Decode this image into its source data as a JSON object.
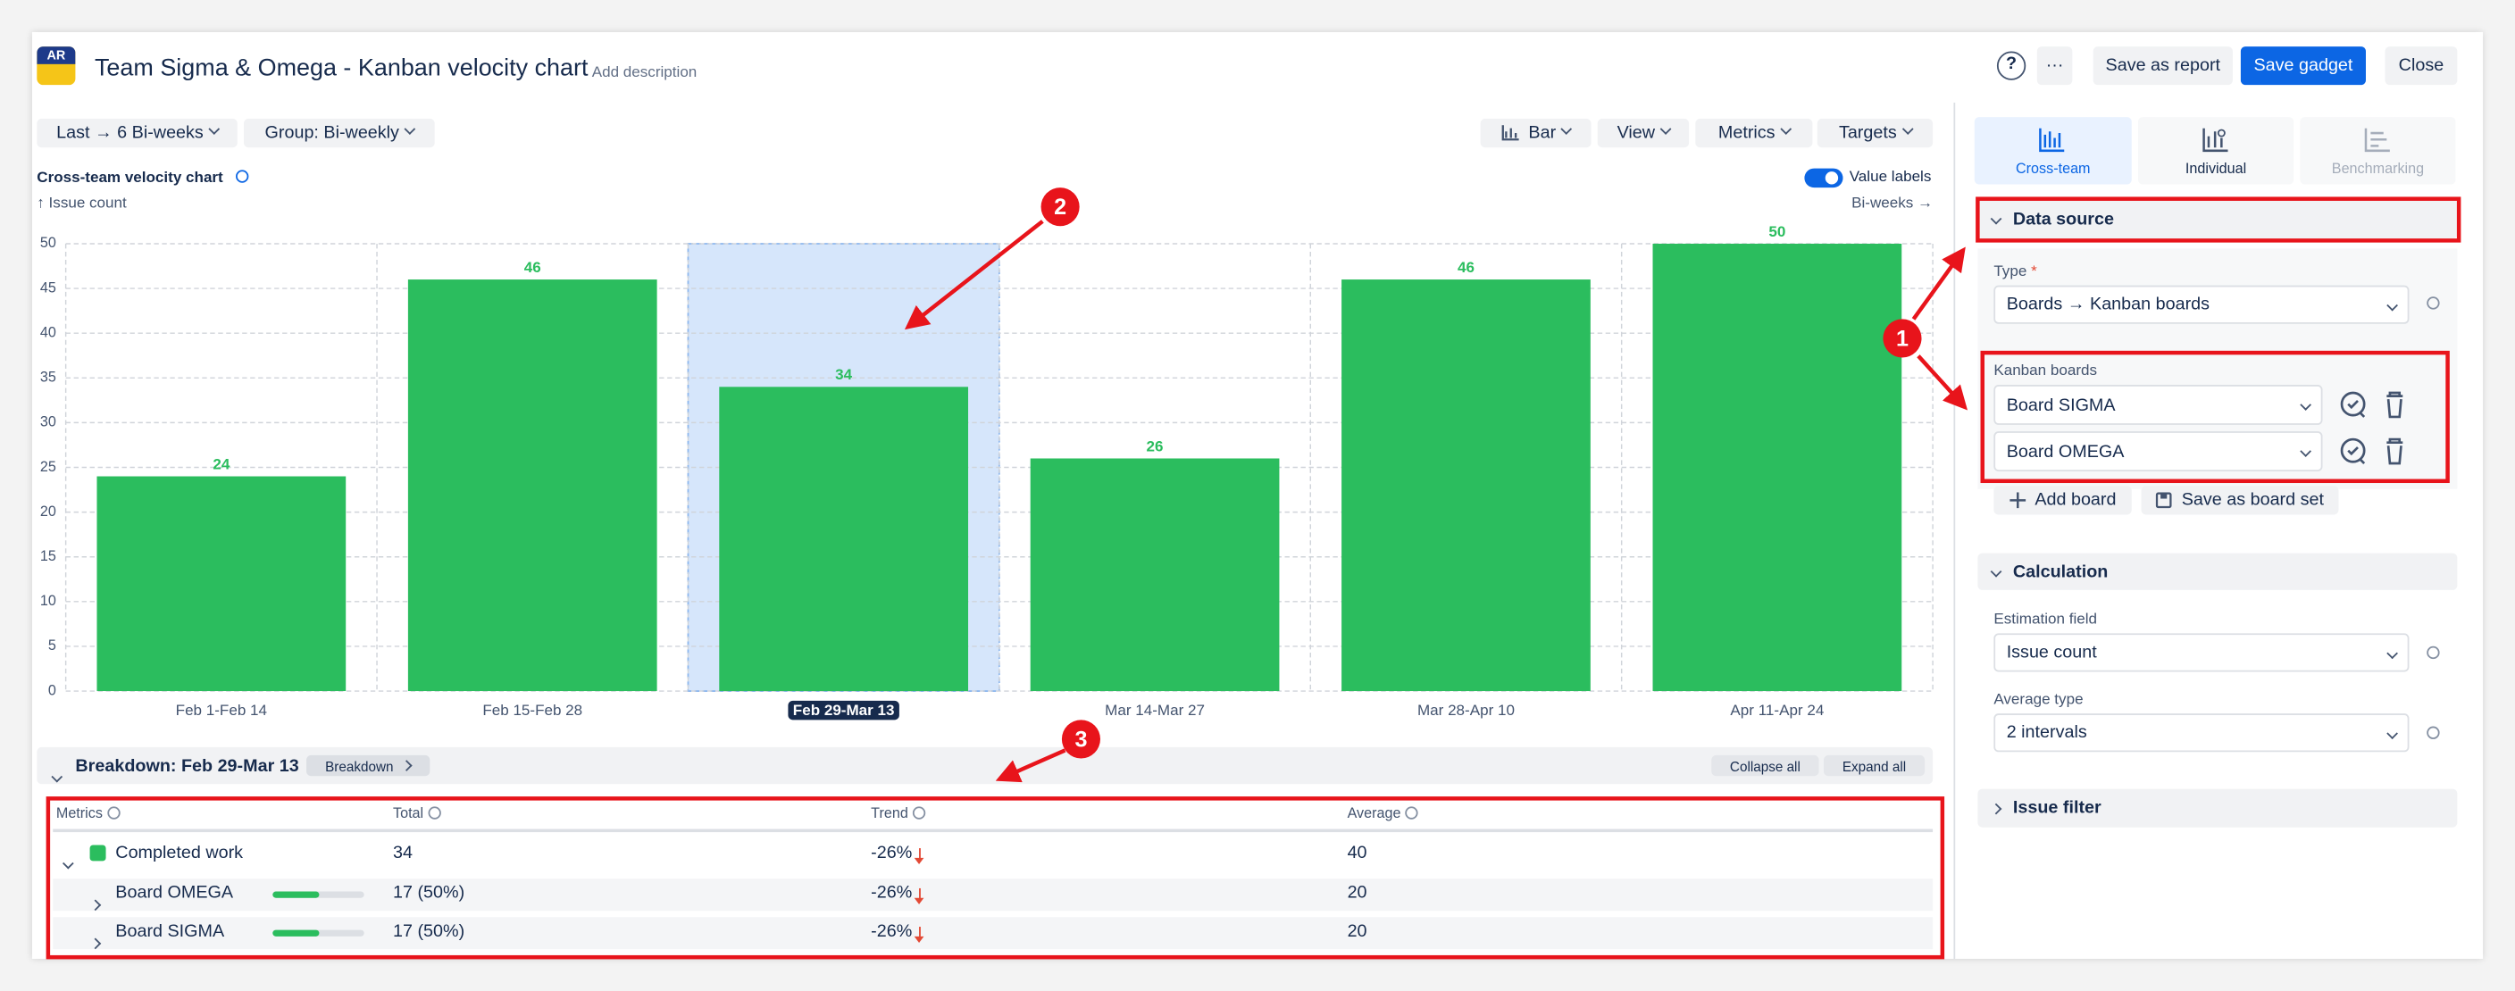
{
  "header": {
    "logo": "AR",
    "title": "Team Sigma & Omega - Kanban velocity chart",
    "add_description": "Add description",
    "help": "?",
    "more": "···",
    "save_report": "Save as report",
    "save_gadget": "Save gadget",
    "close": "Close"
  },
  "toolbar": {
    "period": "Last → 6 Bi-weeks",
    "group": "Group: Bi-weekly",
    "chart_type": "Bar",
    "view": "View",
    "metrics": "Metrics",
    "targets": "Targets",
    "value_labels": "Value labels"
  },
  "chart_data": {
    "type": "bar",
    "title": "Cross-team velocity chart",
    "y_label": "↑ Issue count",
    "x_label": "Bi-weeks →",
    "categories": [
      "Feb 1-Feb 14",
      "Feb 15-Feb 28",
      "Feb 29-Mar 13",
      "Mar 14-Mar 27",
      "Mar 28-Apr 10",
      "Apr 11-Apr 24"
    ],
    "values": [
      24,
      46,
      34,
      26,
      46,
      50
    ],
    "color": "#2bbd5e",
    "highlight": 2,
    "value_labels_shown": true,
    "ylim": [
      0,
      50
    ],
    "yticks": [
      0,
      5,
      10,
      15,
      20,
      25,
      30,
      35,
      40,
      45,
      50
    ],
    "grid": true
  },
  "breakdown": {
    "title": "Breakdown: Feb 29-Mar 13",
    "button": "Breakdown",
    "collapse_all": "Collapse all",
    "expand_all": "Expand all",
    "columns": [
      "Metrics",
      "Total",
      "Trend",
      "Average"
    ],
    "rows": [
      [
        "Completed work",
        "34",
        "-26%",
        "40"
      ],
      [
        "Board OMEGA",
        "17 (50%)",
        "-26%",
        "20"
      ],
      [
        "Board SIGMA",
        "17 (50%)",
        "-26%",
        "20"
      ]
    ]
  },
  "panel": {
    "tabs": [
      "Cross-team",
      "Individual",
      "Benchmarking"
    ],
    "data_source": "Data source",
    "type_label": "Type",
    "required": "*",
    "type_value": "Boards → Kanban boards",
    "boards_label": "Kanban boards",
    "boards": [
      "Board SIGMA",
      "Board OMEGA"
    ],
    "add_board": "Add board",
    "save_board_set": "Save as board set",
    "calculation": "Calculation",
    "estimation_label": "Estimation field",
    "estimation_value": "Issue count",
    "average_label": "Average type",
    "average_value": "2 intervals",
    "issue_filter": "Issue filter"
  },
  "annotations": [
    "1",
    "2",
    "3"
  ]
}
